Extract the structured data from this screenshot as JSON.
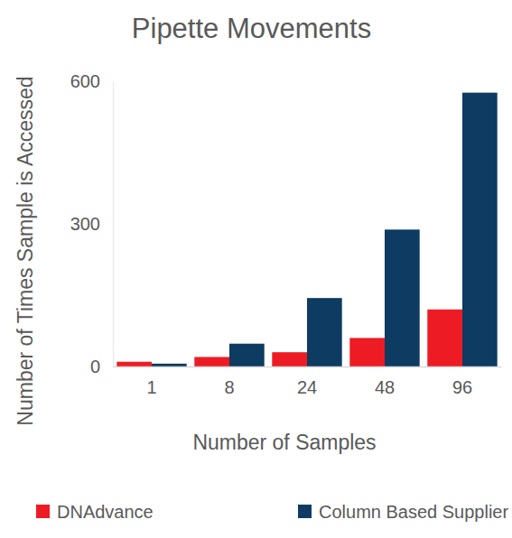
{
  "chart_data": {
    "type": "bar",
    "title": "Pipette Movements",
    "x_label": "Number of Samples",
    "y_label": "Number of Times Sample is Accessed",
    "categories": [
      "1",
      "8",
      "24",
      "48",
      "96"
    ],
    "series": [
      {
        "name": "DNAdvance",
        "color": "#ed1c24",
        "values": [
          10,
          20,
          30,
          60,
          120
        ]
      },
      {
        "name": "Column Based Supplier",
        "color": "#0e3b62",
        "values": [
          6,
          48,
          144,
          288,
          576
        ]
      }
    ],
    "ylim": [
      0,
      600
    ],
    "yticks": [
      0,
      300,
      600
    ],
    "grid": false,
    "legend": "bottom"
  }
}
